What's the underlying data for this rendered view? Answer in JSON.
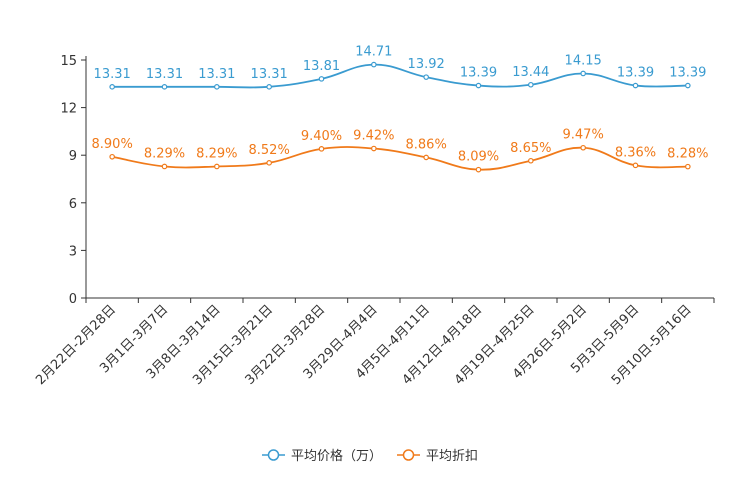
{
  "chart_data": {
    "type": "line",
    "categories": [
      "2月22日-2月28日",
      "3月1日-3月7日",
      "3月8日-3月14日",
      "3月15日-3月21日",
      "3月22日-3月28日",
      "3月29日-4月4日",
      "4月5日-4月11日",
      "4月12日-4月18日",
      "4月19日-4月25日",
      "4月26日-5月2日",
      "5月3日-5月9日",
      "5月10日-5月16日"
    ],
    "yticks": [
      "0",
      "3",
      "6",
      "9",
      "12",
      "15"
    ],
    "ylim": [
      0,
      15
    ],
    "series": [
      {
        "name": "平均价格（万）",
        "color": "#3a9bd0",
        "values": [
          13.31,
          13.31,
          13.31,
          13.31,
          13.81,
          14.71,
          13.92,
          13.39,
          13.44,
          14.15,
          13.39,
          13.39
        ],
        "labels": [
          "13.31",
          "13.31",
          "13.31",
          "13.31",
          "13.81",
          "14.71",
          "13.92",
          "13.39",
          "13.44",
          "14.15",
          "13.39",
          "13.39"
        ]
      },
      {
        "name": "平均折扣",
        "color": "#f07a1a",
        "values": [
          8.9,
          8.29,
          8.29,
          8.52,
          9.4,
          9.42,
          8.86,
          8.09,
          8.65,
          9.47,
          8.36,
          8.28
        ],
        "labels": [
          "8.90%",
          "8.29%",
          "8.29%",
          "8.52%",
          "9.40%",
          "9.42%",
          "8.86%",
          "8.09%",
          "8.65%",
          "9.47%",
          "8.36%",
          "8.28%"
        ]
      }
    ],
    "legend_position": "bottom-center"
  }
}
